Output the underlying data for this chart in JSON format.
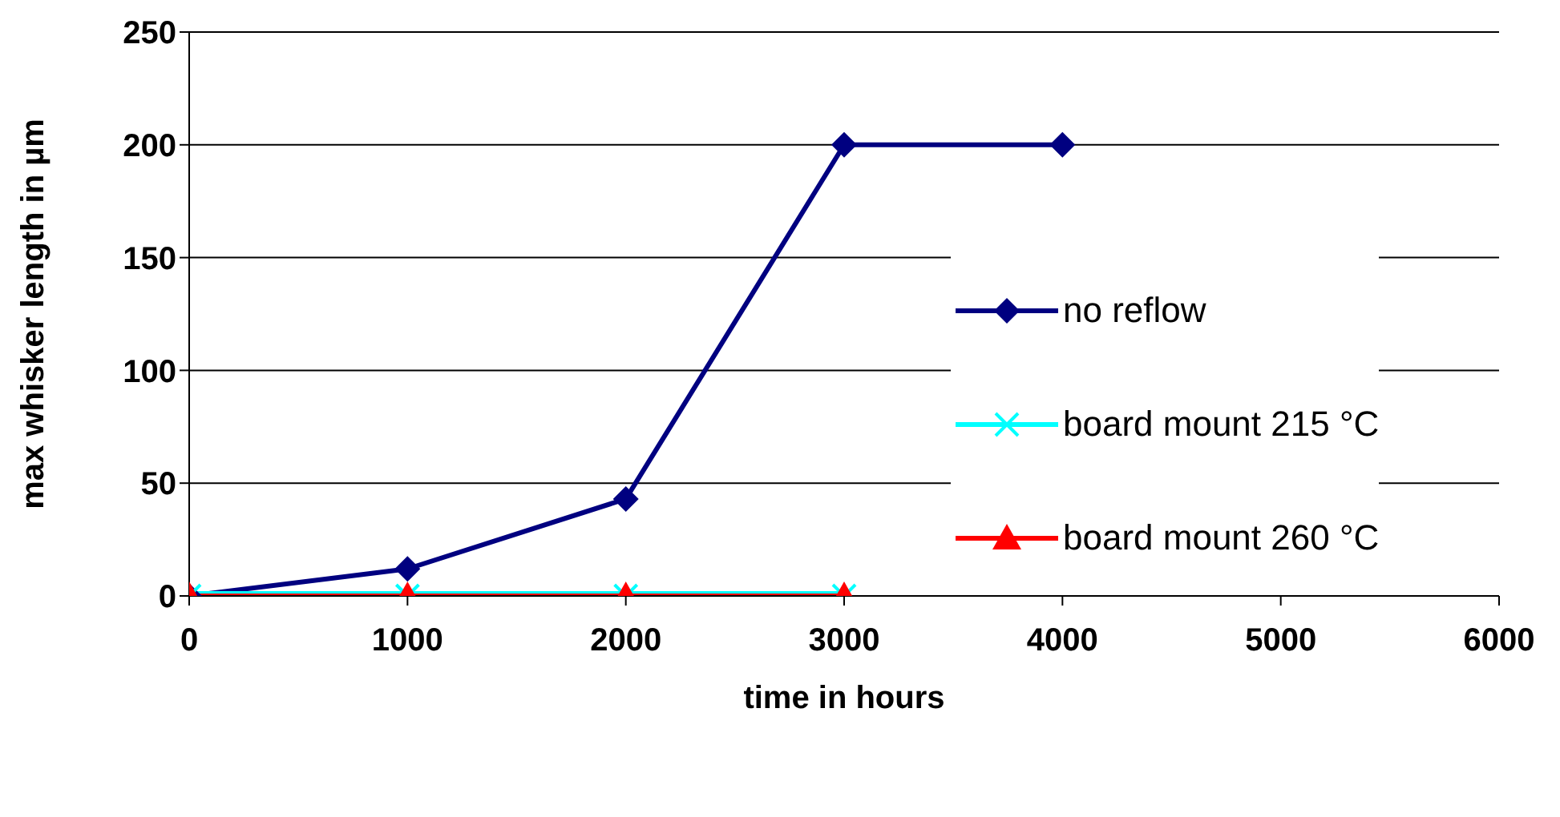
{
  "chart_data": {
    "type": "line",
    "xlabel": "time in hours",
    "ylabel": "max whisker length in µm",
    "xlim": [
      0,
      6000
    ],
    "xticks": [
      0,
      1000,
      2000,
      3000,
      4000,
      5000,
      6000
    ],
    "ylim": [
      0,
      250
    ],
    "yticks": [
      0,
      50,
      100,
      150,
      200,
      250
    ],
    "grid": "y",
    "legend": "right",
    "series": [
      {
        "name": "no reflow",
        "color": "#000080",
        "marker": "diamond",
        "x": [
          0,
          1000,
          2000,
          3000,
          4000
        ],
        "values": [
          0,
          12,
          43,
          200,
          200
        ]
      },
      {
        "name": "board mount 215 °C",
        "color": "#00ffff",
        "marker": "cross",
        "x": [
          0,
          1000,
          2000,
          3000
        ],
        "values": [
          0,
          0,
          0,
          0
        ]
      },
      {
        "name": "board mount 260 °C",
        "color": "#ff0000",
        "marker": "triangle",
        "x": [
          0,
          1000,
          2000,
          3000
        ],
        "values": [
          0,
          0,
          0,
          0
        ]
      }
    ]
  }
}
